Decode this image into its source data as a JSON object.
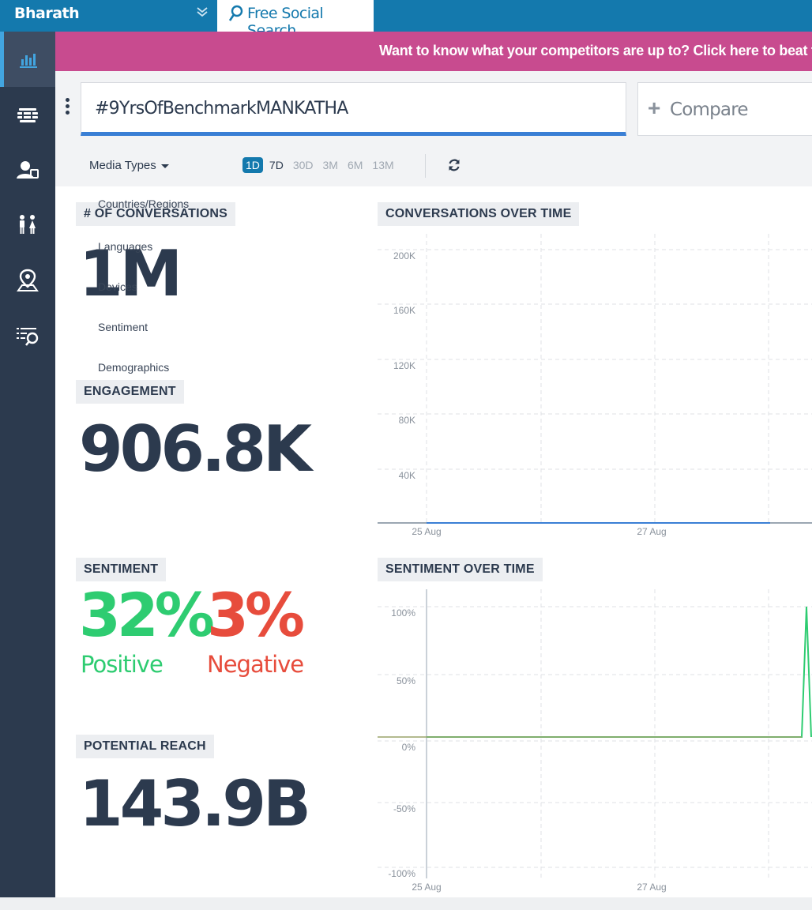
{
  "account": {
    "name": "Bharath"
  },
  "search_tab": {
    "label": "Free Social Search",
    "icon": "search-icon"
  },
  "sidebar": {
    "items": [
      {
        "name": "analytics",
        "icon": "bar-chart-icon",
        "active": true
      },
      {
        "name": "stream",
        "icon": "layers-icon",
        "active": false
      },
      {
        "name": "audience",
        "icon": "user-profile-icon",
        "active": false
      },
      {
        "name": "demographics",
        "icon": "people-icon",
        "active": false
      },
      {
        "name": "locations",
        "icon": "map-pin-icon",
        "active": false
      },
      {
        "name": "search-list",
        "icon": "list-search-icon",
        "active": false
      }
    ]
  },
  "banner": {
    "text": "Want to know what your competitors are up to? Click here to beat them",
    "color": "#c84b8f"
  },
  "query": {
    "text": "#9YrsOfBenchmarkMANKATHA"
  },
  "compare": {
    "label": "Compare"
  },
  "filters": {
    "media_types_label": "Media Types",
    "time_ranges": [
      "1D",
      "7D",
      "30D",
      "3M",
      "6M",
      "13M"
    ],
    "selected_time_range": "1D",
    "enabled_time_ranges": [
      "1D",
      "7D"
    ]
  },
  "dropdown": {
    "items": [
      "Countries/Regions",
      "Languages",
      "Devices",
      "Sentiment",
      "Demographics"
    ]
  },
  "metrics": {
    "conversations_label": "# OF CONVERSATIONS",
    "conversations_value": "1M",
    "engagement_label": "ENGAGEMENT",
    "engagement_value": "906.8K",
    "sentiment_label": "SENTIMENT",
    "positive_pct": "32%",
    "positive_label": "Positive",
    "negative_pct": "3%",
    "negative_label": "Negative",
    "reach_label": "POTENTIAL REACH",
    "reach_value": "143.9B"
  },
  "colors": {
    "brand": "#1479ad",
    "sidebar": "#2c3a4e",
    "positive": "#2ecc71",
    "negative": "#e74c3c",
    "line_blue": "#3a7fd5",
    "line_green": "#2ecc71"
  },
  "chart_data": [
    {
      "type": "line",
      "title": "CONVERSATIONS OVER TIME",
      "x_ticks": [
        "25 Aug",
        "27 Aug"
      ],
      "y_ticks": [
        "200K",
        "160K",
        "120K",
        "80K",
        "40K"
      ],
      "ylim": [
        0,
        220000
      ],
      "grid": true,
      "series": [
        {
          "color": "#3a7fd5",
          "x": [
            "25 Aug",
            "26 Aug",
            "27 Aug",
            "28 Aug"
          ],
          "values": [
            0,
            0,
            0,
            0
          ]
        }
      ]
    },
    {
      "type": "line",
      "title": "SENTIMENT OVER TIME",
      "x_ticks": [
        "25 Aug",
        "27 Aug"
      ],
      "y_ticks": [
        "100%",
        "50%",
        "0%",
        "-50%",
        "-100%"
      ],
      "ylim": [
        -100,
        100
      ],
      "grid": true,
      "series": [
        {
          "color": "#2ecc71",
          "x": [
            "25 Aug",
            "26 Aug",
            "27 Aug",
            "28 Aug",
            "28 Aug",
            "28 Aug"
          ],
          "values": [
            0,
            0,
            0,
            0,
            100,
            0
          ]
        }
      ]
    }
  ]
}
